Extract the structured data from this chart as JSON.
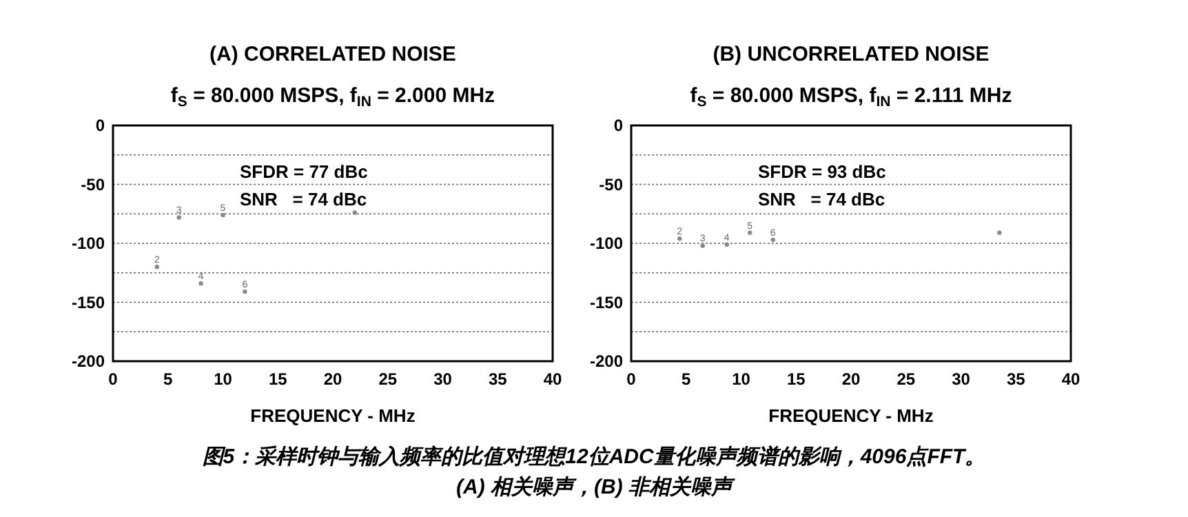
{
  "chart_data": [
    {
      "type": "scatter",
      "title": "(A) CORRELATED NOISE",
      "subtitle": "f$_{S}$ = 80.000 MSPS, f$_{IN}$ = 2.000 MHz",
      "xlabel": "FREQUENCY - MHz",
      "series": [
        {
          "color": "#888888",
          "x": [
            4,
            6,
            8,
            10,
            12,
            22
          ],
          "values": [
            -120,
            -78,
            -134,
            -76,
            -141,
            -74
          ]
        }
      ],
      "xlim": [
        0,
        40
      ],
      "xticks": [
        0,
        5,
        10,
        15,
        20,
        25,
        30,
        35,
        40
      ],
      "ylim": [
        -200,
        0
      ],
      "yticks": [
        0,
        {
          "value": -25,
          "label": null
        },
        -50,
        {
          "value": -75,
          "label": null
        },
        -100,
        {
          "value": -125,
          "label": null
        },
        -150,
        {
          "value": -175,
          "label": null
        },
        -200
      ],
      "grid": "y",
      "annotations": [
        "SFDR = 77 dBc",
        "SNR   = 74 dBc",
        {
          "text": "2",
          "x": 4,
          "y": -120
        },
        {
          "text": "3",
          "x": 6,
          "y": -78
        },
        {
          "text": "4",
          "x": 8,
          "y": -134
        },
        {
          "text": "5",
          "x": 10,
          "y": -76
        },
        {
          "text": "6",
          "x": 12,
          "y": -141
        },
        "图5：采样时钟与输入频率的比值对理想12位ADC量化噪声频谱的影响，4096点FFT。",
        "(A) 相关噪声，(B) 非相关噪声"
      ]
    },
    {
      "type": "scatter",
      "title": "(B) UNCORRELATED NOISE",
      "subtitle": "f$_{S}$ = 80.000 MSPS, f$_{IN}$ = 2.111 MHz",
      "xlabel": "FREQUENCY - MHz",
      "series": [
        {
          "color": "#888888",
          "x": [
            4.4,
            6.5,
            8.7,
            10.8,
            12.9,
            33.5
          ],
          "values": [
            -96,
            -102,
            -101,
            -91,
            -97,
            -91
          ]
        }
      ],
      "xlim": [
        0,
        40
      ],
      "xticks": [
        0,
        5,
        10,
        15,
        20,
        25,
        30,
        35,
        40
      ],
      "ylim": [
        -200,
        0
      ],
      "yticks": [
        0,
        {
          "value": -25,
          "label": null
        },
        -50,
        {
          "value": -75,
          "label": null
        },
        -100,
        {
          "value": -125,
          "label": null
        },
        -150,
        {
          "value": -175,
          "label": null
        },
        -200
      ],
      "grid": "y",
      "annotations": [
        "SFDR = 93 dBc",
        "SNR   = 74 dBc",
        {
          "text": "2",
          "x": 4.4,
          "y": -96
        },
        {
          "text": "3",
          "x": 6.5,
          "y": -102
        },
        {
          "text": "4",
          "x": 8.7,
          "y": -101
        },
        {
          "text": "5",
          "x": 10.8,
          "y": -91
        },
        {
          "text": "6",
          "x": 12.9,
          "y": -97
        }
      ]
    }
  ]
}
